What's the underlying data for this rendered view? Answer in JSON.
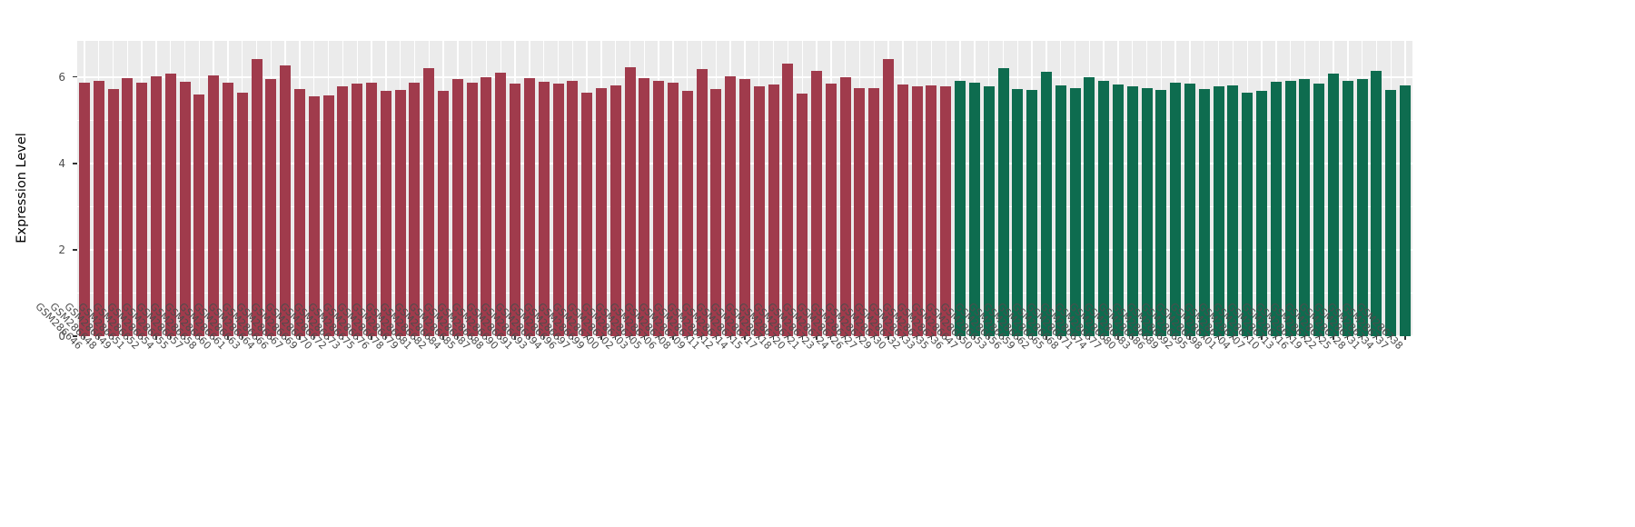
{
  "figure": {
    "title": "",
    "y_axis_title": "Expression Level"
  },
  "chart_data": {
    "type": "bar",
    "title": "",
    "xlabel": "",
    "ylabel": "Expression Level",
    "ylim": [
      0,
      6.84
    ],
    "yticks_major": [
      0,
      2,
      4,
      6
    ],
    "yticks_minor": [
      1,
      3,
      5
    ],
    "legend": "none",
    "grid": "on",
    "panel_background": "#EBEBEB",
    "grid_color": "#FFFFFF",
    "xtick_rotation_deg": 45,
    "groups": [
      {
        "name": "group-1-red",
        "color": "#A03B4C",
        "count": 61
      },
      {
        "name": "group-2-green",
        "color": "#0E6C4F",
        "count": 32
      }
    ],
    "categories": [
      "GSM286646",
      "GSM286648",
      "GSM286649",
      "GSM286651",
      "GSM286652",
      "GSM286654",
      "GSM286655",
      "GSM286657",
      "GSM286658",
      "GSM286660",
      "GSM286661",
      "GSM286663",
      "GSM286664",
      "GSM286666",
      "GSM286667",
      "GSM286669",
      "GSM286670",
      "GSM286672",
      "GSM286673",
      "GSM286675",
      "GSM286676",
      "GSM286678",
      "GSM286679",
      "GSM286681",
      "GSM286682",
      "GSM286684",
      "GSM286685",
      "GSM286687",
      "GSM286688",
      "GSM286690",
      "GSM286691",
      "GSM286693",
      "GSM286694",
      "GSM286696",
      "GSM286697",
      "GSM286699",
      "GSM286700",
      "GSM286702",
      "GSM286703",
      "GSM286705",
      "GSM286706",
      "GSM286708",
      "GSM286709",
      "GSM286711",
      "GSM286712",
      "GSM286714",
      "GSM286715",
      "GSM286717",
      "GSM286718",
      "GSM286720",
      "GSM286721",
      "GSM286723",
      "GSM286724",
      "GSM286726",
      "GSM286727",
      "GSM286729",
      "GSM286730",
      "GSM286732",
      "GSM286733",
      "GSM286735",
      "GSM286736",
      "GSM286647",
      "GSM286650",
      "GSM286653",
      "GSM286656",
      "GSM286659",
      "GSM286662",
      "GSM286665",
      "GSM286668",
      "GSM286671",
      "GSM286674",
      "GSM286677",
      "GSM286680",
      "GSM286683",
      "GSM286686",
      "GSM286689",
      "GSM286692",
      "GSM286695",
      "GSM286698",
      "GSM286701",
      "GSM286704",
      "GSM286707",
      "GSM286710",
      "GSM286713",
      "GSM286716",
      "GSM286719",
      "GSM286722",
      "GSM286725",
      "GSM286728",
      "GSM286731",
      "GSM286734",
      "GSM286737",
      "GSM286738"
    ],
    "values": [
      5.88,
      5.92,
      5.72,
      5.97,
      5.88,
      6.02,
      6.08,
      5.9,
      5.6,
      6.05,
      5.88,
      5.65,
      6.42,
      5.95,
      6.28,
      5.72,
      5.55,
      5.57,
      5.78,
      5.85,
      5.88,
      5.68,
      5.7,
      5.88,
      6.2,
      5.68,
      5.95,
      5.88,
      6.0,
      6.1,
      5.85,
      5.98,
      5.9,
      5.85,
      5.92,
      5.65,
      5.75,
      5.8,
      6.22,
      5.98,
      5.92,
      5.88,
      5.68,
      6.18,
      5.72,
      6.02,
      5.95,
      5.78,
      5.82,
      6.32,
      5.62,
      6.15,
      5.85,
      6.0,
      5.75,
      5.75,
      6.42,
      5.82,
      5.78,
      5.8,
      5.78,
      5.92,
      5.88,
      5.78,
      6.2,
      5.72,
      5.7,
      6.12,
      5.8,
      5.75,
      6.0,
      5.92,
      5.82,
      5.78,
      5.75,
      5.7,
      5.88,
      5.85,
      5.72,
      5.78,
      5.8,
      5.65,
      5.68,
      5.9,
      5.92,
      5.95,
      5.85,
      6.08,
      5.92,
      5.95,
      6.15,
      5.7,
      5.8
    ]
  }
}
